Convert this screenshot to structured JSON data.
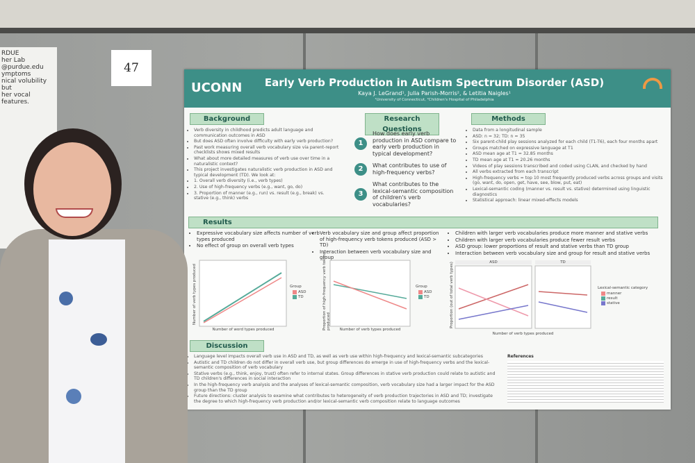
{
  "sign_number": "47",
  "left_poster": {
    "lines": [
      "RDUE",
      "her Lab",
      "@purdue.edu",
      "ymptoms",
      "nical volubility but",
      "her vocal features."
    ]
  },
  "poster": {
    "logo": "UCONN",
    "title": "Early Verb Production in Autism Spectrum Disorder (ASD)",
    "authors": "Kaya J. LeGrand¹, Julia Parish-Morris², & Letitia Naigles¹",
    "affiliations": "¹University of Connecticut, ²Children's Hospital of Philadelphia",
    "background": {
      "heading": "Background",
      "bullets": [
        "Verb diversity in childhood predicts adult language and communication outcomes in ASD",
        "But does ASD often involve difficulty with early verb production?",
        "Past work measuring overall verb vocabulary size via parent-report checklists shows mixed results",
        "What about more detailed measures of verb use over time in a naturalistic context?",
        "This project investigates naturalistic verb production in ASD and typical development (TD). We look at:",
        "1. Overall verb diversity (i.e., verb types)",
        "2. Use of high-frequency verbs (e.g., want, go, do)",
        "3. Proportion of manner (e.g., run) vs. result (e.g., break) vs. stative (e.g., think) verbs"
      ]
    },
    "research_questions": {
      "heading": "Research Questions",
      "items": [
        {
          "number": "1",
          "text": "How does early verb production in ASD compare to early verb production in typical development?"
        },
        {
          "number": "2",
          "text": "What contributes to use of high-frequency verbs?"
        },
        {
          "number": "3",
          "text": "What contributes to the lexical-semantic composition of children's verb vocabularies?"
        }
      ]
    },
    "methods": {
      "heading": "Methods",
      "bullets": [
        "Data from a longitudinal sample",
        "ASD: n = 32; TD: n = 35",
        "Six parent-child play sessions analyzed for each child (T1-T6), each four months apart",
        "Groups matched on expressive language at T1",
        "ASD mean age at T1 = 32.85 months",
        "TD mean age at T1 = 20.26 months",
        "Videos of play sessions transcribed and coded using CLAN, and checked by hand",
        "All verbs extracted from each transcript",
        "High-frequency verbs = top 10 most frequently produced verbs across groups and visits (go, want, do, open, get, have, see, blow, put, eat)",
        "Lexical-semantic coding (manner vs. result vs. stative) determined using linguistic diagnostics",
        "Statistical approach: linear mixed-effects models"
      ]
    },
    "results": {
      "heading": "Results",
      "col1": [
        "Expressive vocabulary size affects number of verb types produced",
        "No effect of group on overall verb types"
      ],
      "col2": [
        "Verb vocabulary size and group affect proportion of high-frequency verb tokens produced (ASD > TD)",
        "Interaction between verb vocabulary size and group"
      ],
      "col3": [
        "Children with larger verb vocabularies produce more manner and stative verbs",
        "Children with larger verb vocabularies produce fewer result verbs",
        "ASD group: lower proportions of result and stative verbs than TD group",
        "Interaction between verb vocabulary size and group for result and stative verbs"
      ],
      "chart1": {
        "ylabel": "Number of verb types produced",
        "xlabel": "Number of word types produced",
        "legend_title": "Group",
        "legend": [
          "ASD",
          "TD"
        ]
      },
      "chart2": {
        "ylabel": "Proportion of high-frequency verb tokens produced",
        "xlabel": "Number of verb types produced",
        "legend_title": "Group",
        "legend": [
          "ASD",
          "TD"
        ]
      },
      "chart3": {
        "ylabel": "Proportion (out of total verb types)",
        "xlabel": "Number of verb types produced",
        "facets": [
          "ASD",
          "TD"
        ],
        "legend_title": "Lexical-semantic category",
        "legend": [
          "manner",
          "result",
          "stative"
        ]
      }
    },
    "discussion": {
      "heading": "Discussion",
      "bullets": [
        "Language level impacts overall verb use in ASD and TD, as well as verb use within high-frequency and lexical-semantic subcategories",
        "Autistic and TD children do not differ in overall verb use, but group differences do emerge in use of high-frequency verbs and the lexical-semantic composition of verb vocabulary",
        "Stative verbs (e.g., think, enjoy, trust) often refer to internal states. Group differences in stative verb production could relate to autistic and TD children's differences in social interaction",
        "In the high-frequency verb analysis and the analyses of lexical-semantic composition, verb vocabulary size had a larger impact for the ASD group than the TD group",
        "Future directions: cluster analysis to examine what contributes to heterogeneity of verb production trajectories in ASD and TD; investigate the degree to which high-frequency verb production and/or lexical-semantic verb composition relate to language outcomes"
      ]
    },
    "references_heading": "References"
  }
}
